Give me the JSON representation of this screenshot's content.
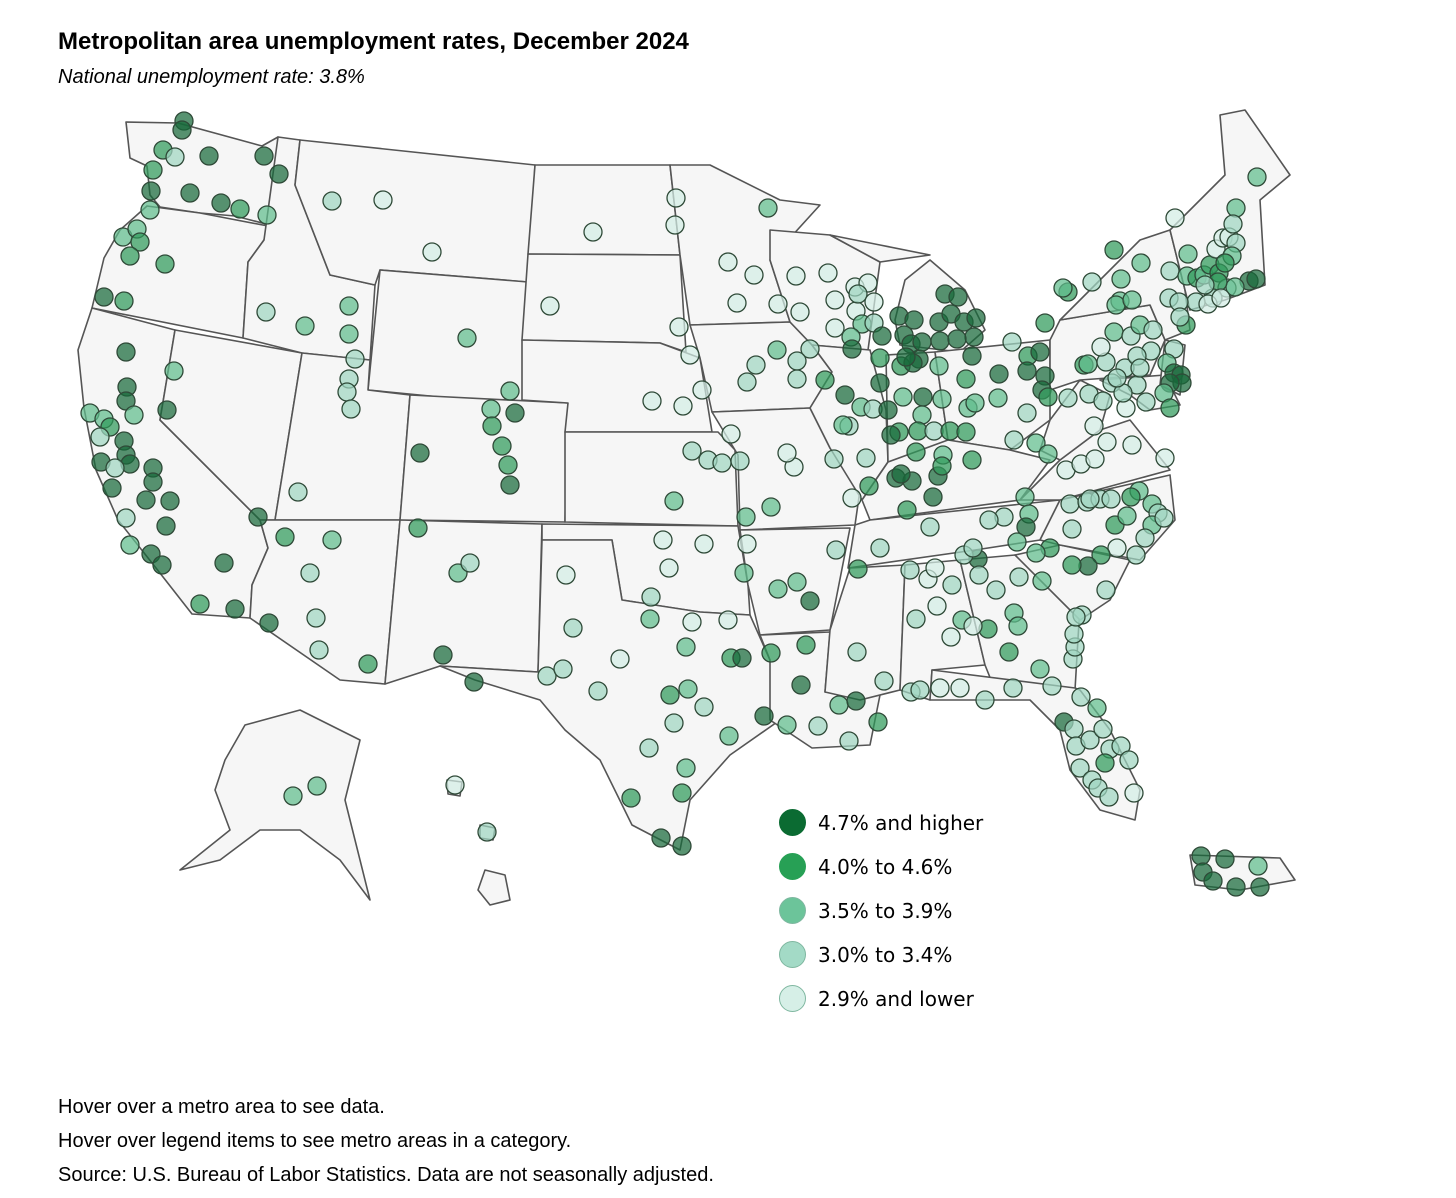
{
  "title": "Metropolitan area unemployment rates, December 2024",
  "subtitle": "National unemployment rate: 3.8%",
  "legend": [
    {
      "label": "4.7% and higher",
      "color": "#0b6b32",
      "fill_opacity": 1
    },
    {
      "label": "4.0% to 4.6%",
      "color": "#27a055",
      "fill_opacity": 1
    },
    {
      "label": "3.5% to 3.9%",
      "color": "#6cc49a",
      "fill_opacity": 1
    },
    {
      "label": "3.0% to 3.4%",
      "color": "#a3dac6",
      "fill_opacity": 1
    },
    {
      "label": "2.9% and lower",
      "color": "#d6efe7",
      "fill_opacity": 1
    }
  ],
  "category_colors": [
    "#176a3a",
    "#2f9a5a",
    "#5fbc8c",
    "#9fd6c0",
    "#d3ede5"
  ],
  "notes": [
    "Hover over a metro area to see data.",
    "Hover over legend items to see metro areas in a category.",
    "Source: U.S. Bureau of Labor Statistics. Data are not seasonally adjusted."
  ]
}
